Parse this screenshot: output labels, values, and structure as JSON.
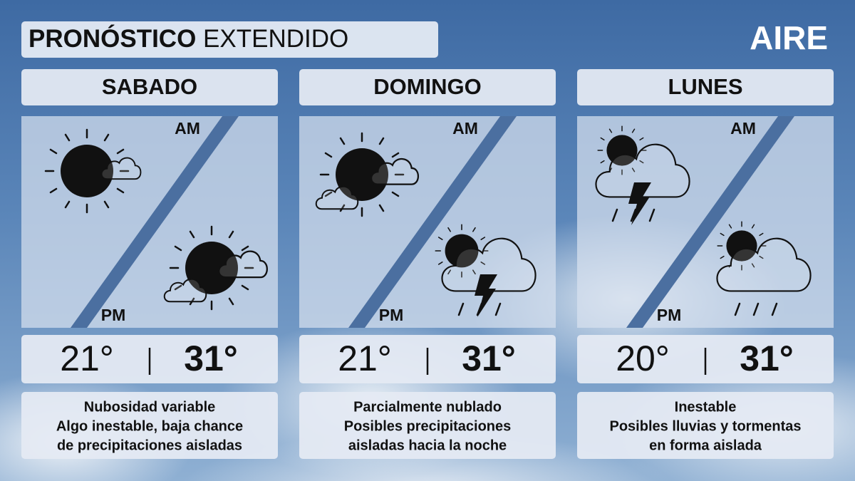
{
  "header": {
    "title_bold": "PRONÓSTICO",
    "title_rest": "EXTENDIDO",
    "brand": "AIRE"
  },
  "days": [
    {
      "name": "SABADO",
      "am_label": "AM",
      "pm_label": "PM",
      "min": "21°",
      "max": "31°",
      "description": [
        "Nubosidad variable",
        "Algo inestable, baja chance",
        "de precipitaciones aisladas"
      ]
    },
    {
      "name": "DOMINGO",
      "am_label": "AM",
      "pm_label": "PM",
      "min": "21°",
      "max": "31°",
      "description": [
        "Parcialmente nublado",
        "Posibles precipitaciones",
        "aisladas hacia la noche"
      ]
    },
    {
      "name": "LUNES",
      "am_label": "AM",
      "pm_label": "PM",
      "min": "20°",
      "max": "31°",
      "description": [
        "Inestable",
        "Posibles lluvias y tormentas",
        "en forma aislada"
      ]
    }
  ]
}
